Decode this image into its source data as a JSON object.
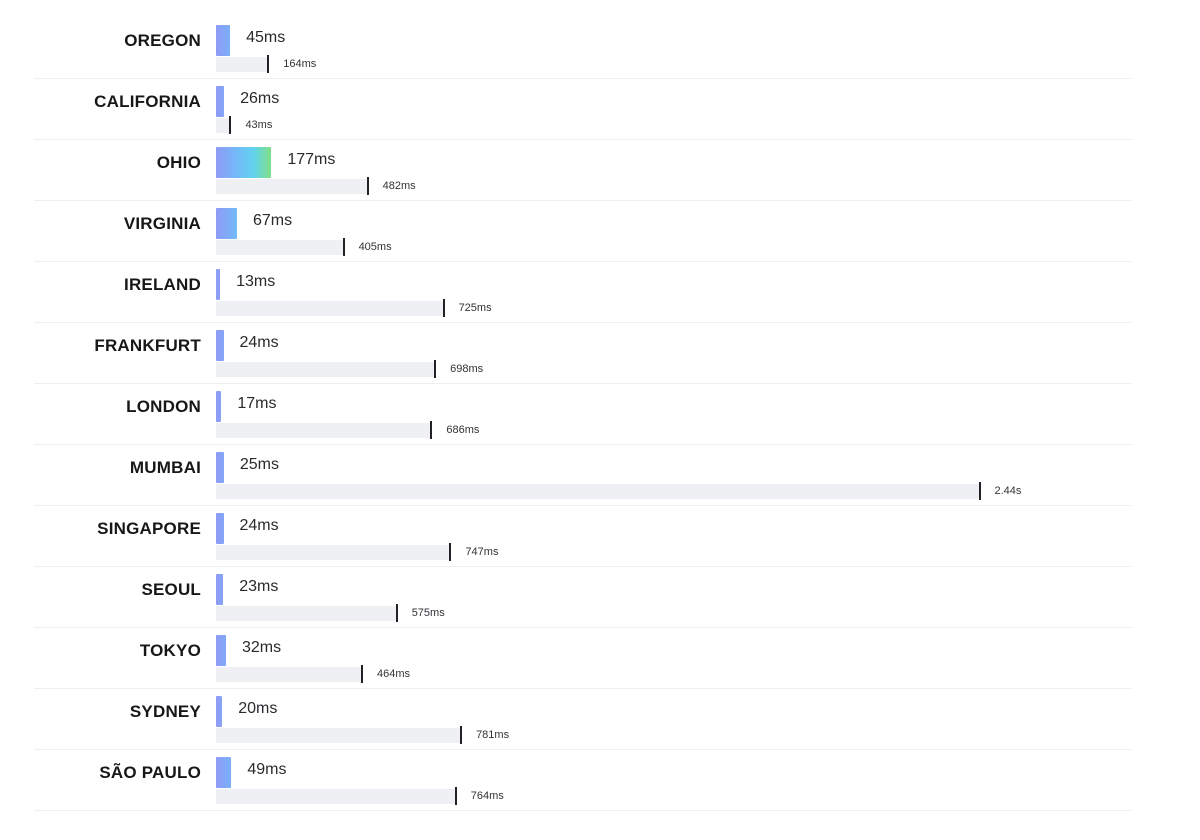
{
  "chart_data": {
    "type": "bar",
    "categories": [
      "OREGON",
      "CALIFORNIA",
      "OHIO",
      "VIRGINIA",
      "IRELAND",
      "FRANKFURT",
      "LONDON",
      "MUMBAI",
      "SINGAPORE",
      "SEOUL",
      "TOKYO",
      "SYDNEY",
      "SÃO PAULO"
    ],
    "series": [
      {
        "values": [
          45,
          26,
          177,
          67,
          13,
          24,
          17,
          25,
          24,
          23,
          32,
          20,
          49
        ],
        "labels": [
          "45ms",
          "26ms",
          "177ms",
          "67ms",
          "13ms",
          "24ms",
          "17ms",
          "25ms",
          "24ms",
          "23ms",
          "32ms",
          "20ms",
          "49ms"
        ]
      },
      {
        "values": [
          164,
          43,
          482,
          405,
          725,
          698,
          686,
          2440,
          747,
          575,
          464,
          781,
          764
        ],
        "labels": [
          "164ms",
          "43ms",
          "482ms",
          "405ms",
          "725ms",
          "698ms",
          "686ms",
          "2.44s",
          "747ms",
          "575ms",
          "464ms",
          "781ms",
          "764ms"
        ]
      }
    ],
    "unit": "ms",
    "colors": {
      "bar_gradient": [
        "#8f9af5",
        "#76b6f9",
        "#61d3ee",
        "#7fe08c"
      ],
      "track": "#eff0f4",
      "marker": "#222226"
    }
  }
}
